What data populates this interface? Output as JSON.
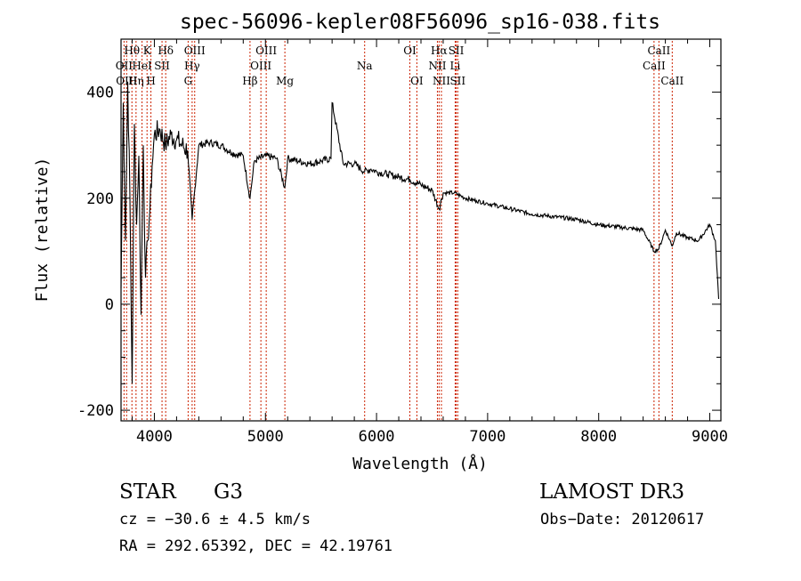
{
  "chart_data": {
    "type": "line",
    "title": "spec-56096-kepler08F56096_sp16-038.fits",
    "xlabel": "Wavelength (Å)",
    "ylabel": "Flux (relative)",
    "xlim": [
      3700,
      9100
    ],
    "ylim": [
      -220,
      500
    ],
    "xticks": [
      4000,
      5000,
      6000,
      7000,
      8000,
      9000
    ],
    "yticks": [
      -200,
      0,
      200,
      400
    ],
    "series": [
      {
        "name": "spectrum",
        "x": [
          3700,
          3720,
          3740,
          3760,
          3780,
          3800,
          3820,
          3840,
          3860,
          3880,
          3900,
          3920,
          3940,
          3960,
          3980,
          4000,
          4050,
          4100,
          4150,
          4200,
          4250,
          4300,
          4340,
          4400,
          4500,
          4600,
          4700,
          4800,
          4861,
          4900,
          5000,
          5100,
          5175,
          5200,
          5300,
          5400,
          5500,
          5590,
          5600,
          5700,
          5800,
          5893,
          5950,
          6000,
          6100,
          6200,
          6300,
          6400,
          6500,
          6563,
          6600,
          6700,
          6800,
          6900,
          7000,
          7200,
          7400,
          7600,
          7800,
          8000,
          8200,
          8400,
          8498,
          8542,
          8600,
          8662,
          8700,
          8800,
          8900,
          9000,
          9050,
          9080
        ],
        "y": [
          30,
          380,
          120,
          420,
          200,
          -150,
          340,
          150,
          280,
          -20,
          300,
          50,
          120,
          180,
          260,
          320,
          330,
          300,
          320,
          310,
          300,
          290,
          160,
          300,
          305,
          300,
          285,
          280,
          200,
          270,
          280,
          275,
          220,
          275,
          270,
          265,
          270,
          275,
          380,
          265,
          265,
          250,
          255,
          250,
          245,
          240,
          235,
          225,
          215,
          180,
          210,
          210,
          200,
          195,
          190,
          180,
          170,
          165,
          160,
          150,
          145,
          140,
          100,
          105,
          140,
          110,
          135,
          125,
          120,
          150,
          120,
          10
        ]
      }
    ],
    "lines": [
      {
        "label": "Hθ",
        "wl": 3798,
        "row": 1
      },
      {
        "label": "OII",
        "wl": 3727,
        "row": 2
      },
      {
        "label": "OIII",
        "wl": 3750,
        "row": 3
      },
      {
        "label": "K",
        "wl": 3934,
        "row": 1
      },
      {
        "label": "HeI",
        "wl": 3889,
        "row": 2
      },
      {
        "label": "Hη",
        "wl": 3835,
        "row": 3
      },
      {
        "label": "H",
        "wl": 3969,
        "row": 3
      },
      {
        "label": "SII",
        "wl": 4069,
        "row": 2
      },
      {
        "label": "Hδ",
        "wl": 4102,
        "row": 1
      },
      {
        "label": "OIII",
        "wl": 4363,
        "row": 1
      },
      {
        "label": "Hγ",
        "wl": 4340,
        "row": 2
      },
      {
        "label": "G",
        "wl": 4304,
        "row": 3
      },
      {
        "label": "Hβ",
        "wl": 4861,
        "row": 3
      },
      {
        "label": "OIII",
        "wl": 5007,
        "row": 1
      },
      {
        "label": "OIII",
        "wl": 4959,
        "row": 2
      },
      {
        "label": "Mg",
        "wl": 5175,
        "row": 3
      },
      {
        "label": "Na",
        "wl": 5893,
        "row": 2
      },
      {
        "label": "OI",
        "wl": 6300,
        "row": 1
      },
      {
        "label": "OI",
        "wl": 6363,
        "row": 3
      },
      {
        "label": "Hα",
        "wl": 6563,
        "row": 1
      },
      {
        "label": "NII",
        "wl": 6548,
        "row": 2
      },
      {
        "label": "NII",
        "wl": 6584,
        "row": 3
      },
      {
        "label": "SII",
        "wl": 6717,
        "row": 1
      },
      {
        "label": "Li",
        "wl": 6708,
        "row": 2
      },
      {
        "label": "SII",
        "wl": 6731,
        "row": 3
      },
      {
        "label": "CaII",
        "wl": 8542,
        "row": 1
      },
      {
        "label": "CaII",
        "wl": 8498,
        "row": 2
      },
      {
        "label": "CaII",
        "wl": 8662,
        "row": 3
      }
    ]
  },
  "info": {
    "object_class": "STAR",
    "subclass": "G3",
    "survey": "LAMOST DR3",
    "cz": "cz = −30.6 ± 4.5 km/s",
    "obs_date": "Obs−Date: 20120617",
    "coords": "RA = 292.65392, DEC =  42.19761"
  },
  "colors": {
    "spectrum": "#000000",
    "line_marker": "#cc2200",
    "axes": "#000000",
    "background": "#ffffff"
  }
}
